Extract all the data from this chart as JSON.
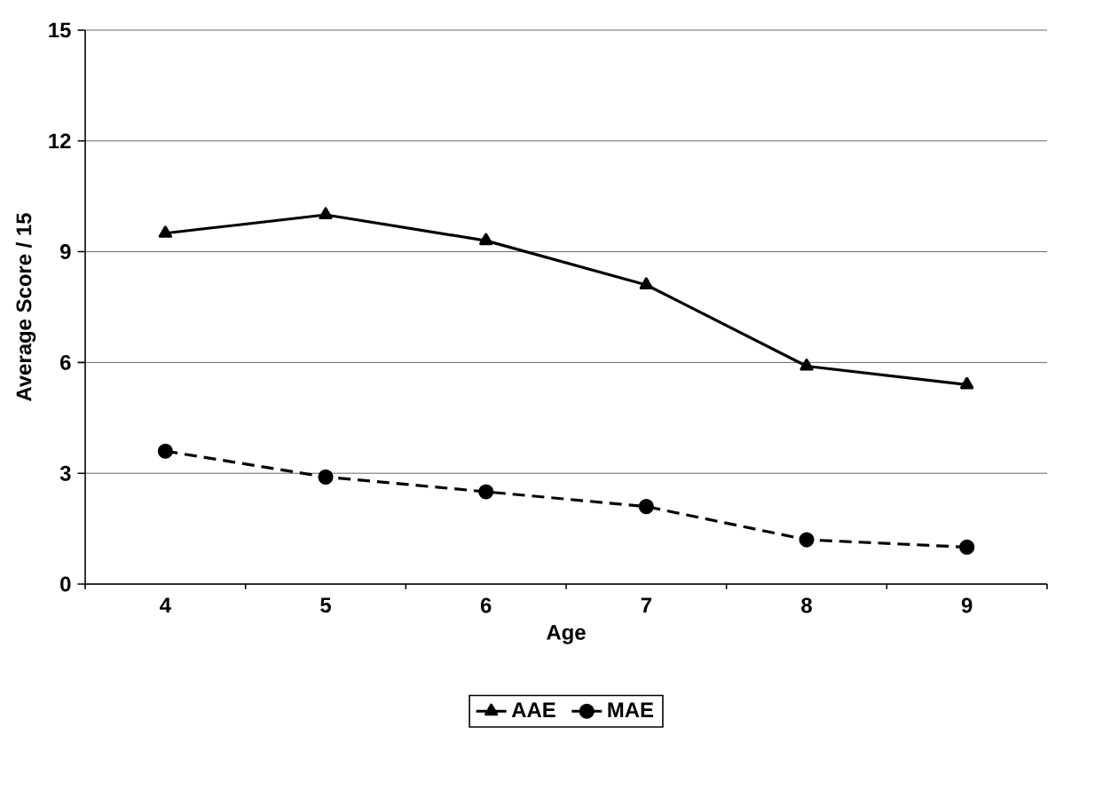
{
  "chart_data": {
    "type": "line",
    "xlabel": "Age",
    "ylabel": "Average Score / 15",
    "categories": [
      "4",
      "5",
      "6",
      "7",
      "8",
      "9"
    ],
    "series": [
      {
        "name": "AAE",
        "color": "#000000",
        "marker": "triangle",
        "line_style": "solid",
        "values": [
          9.5,
          10.0,
          9.3,
          8.1,
          5.9,
          5.4
        ]
      },
      {
        "name": "MAE",
        "color": "#000000",
        "marker": "circle",
        "line_style": "dashed",
        "values": [
          3.6,
          2.9,
          2.5,
          2.1,
          1.2,
          1.0
        ]
      }
    ],
    "ylim": [
      0,
      15
    ],
    "yticks": [
      0,
      3,
      6,
      9,
      12,
      15
    ],
    "grid": "y",
    "legend": "bottom"
  }
}
